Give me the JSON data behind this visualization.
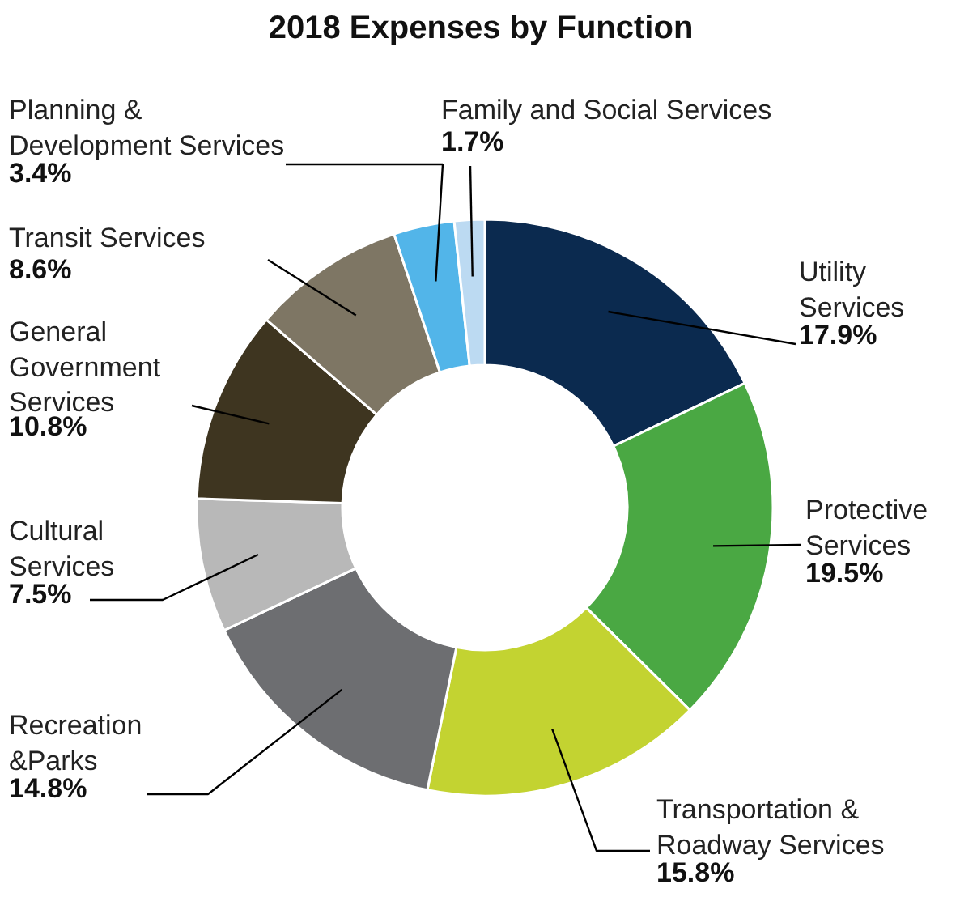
{
  "chart_data": {
    "type": "donut",
    "title": "2018 Expenses by Function",
    "categories": [
      "Utility\nServices",
      "Protective\nServices",
      "Transportation &\nRoadway Services",
      "Recreation\n&Parks",
      "Cultural\nServices",
      "General\nGovernment\nServices",
      "Transit Services",
      "Planning &\nDevelopment Services",
      "Family and Social Services"
    ],
    "values": [
      17.9,
      19.5,
      15.8,
      14.8,
      7.5,
      10.8,
      8.6,
      3.4,
      1.7
    ],
    "value_labels": [
      "17.9%",
      "19.5%",
      "15.8%",
      "14.8%",
      "7.5%",
      "10.8%",
      "8.6%",
      "3.4%",
      "1.7%"
    ],
    "colors": [
      "#0b2a4f",
      "#4aa843",
      "#c3d331",
      "#6d6e71",
      "#b8b8b8",
      "#3e3520",
      "#7e7664",
      "#52b5e9",
      "#bcdaf2"
    ]
  }
}
